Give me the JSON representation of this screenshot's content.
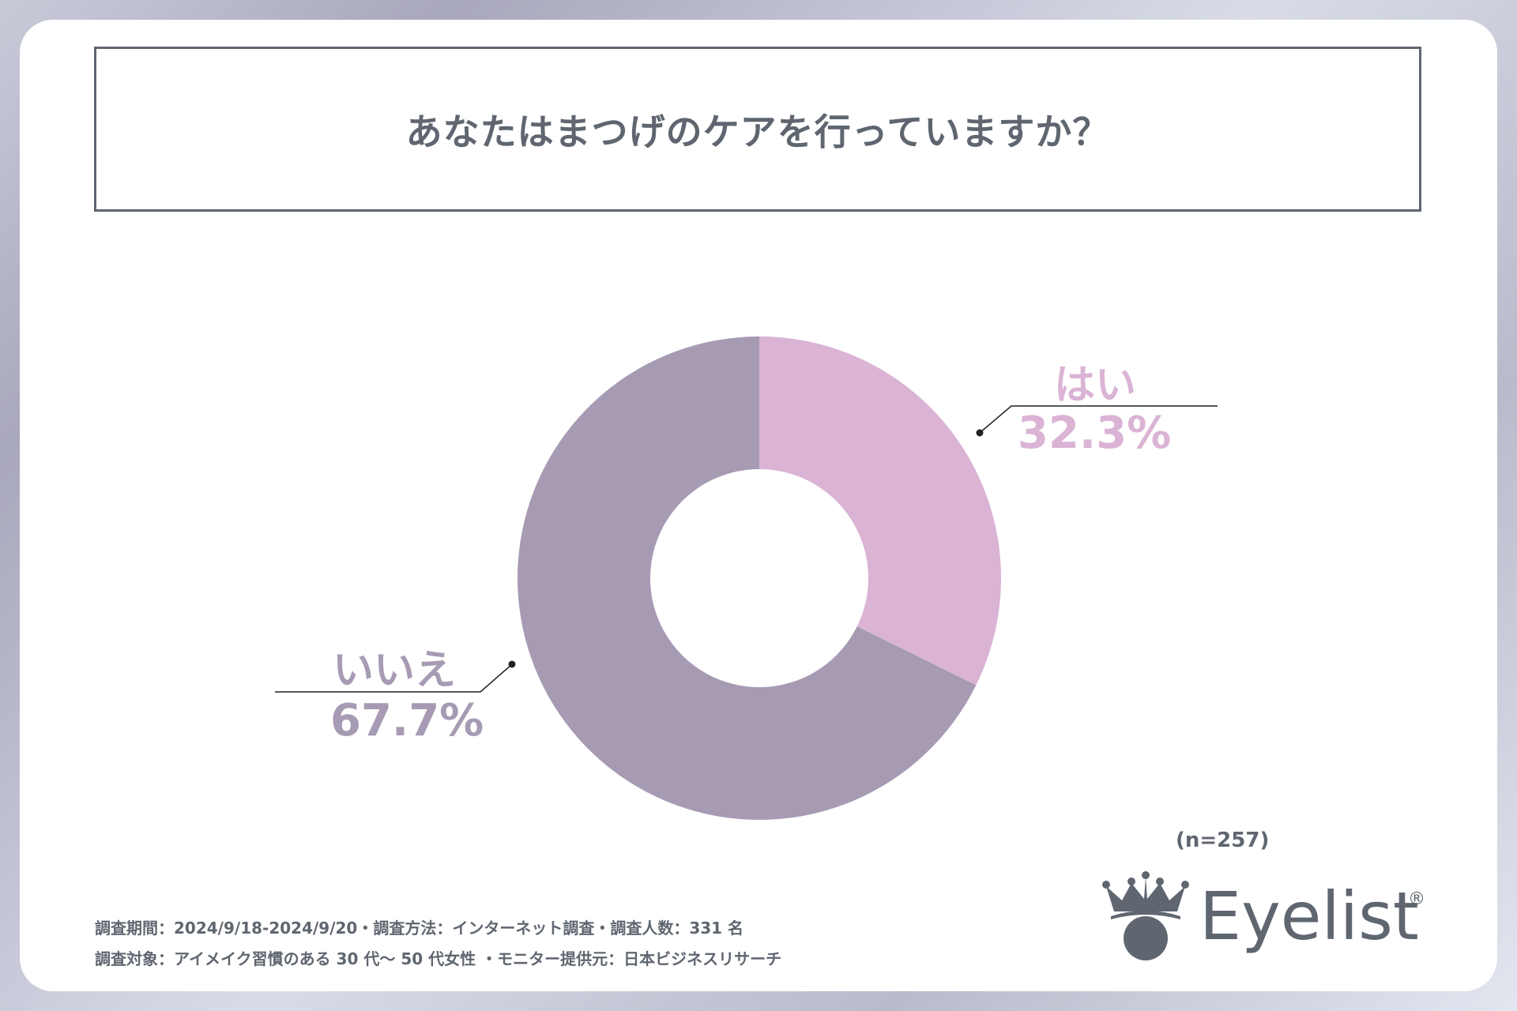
{
  "title": "あなたはまつげのケアを行っていますか？",
  "colors": {
    "yes": "#dab3d5",
    "no": "#a79bb4",
    "text": "#5f6670",
    "leader": "#222222"
  },
  "chart_data": {
    "type": "pie",
    "subtype": "donut",
    "title": "あなたはまつげのケアを行っていますか？",
    "slices": [
      {
        "label": "はい",
        "value": 32.3,
        "value_label": "32.3%"
      },
      {
        "label": "いいえ",
        "value": 67.7,
        "value_label": "67.7%"
      }
    ],
    "start": "12 o'clock",
    "direction": "clockwise"
  },
  "sample_size": "(n=257)",
  "footer": {
    "line1": "調査期間：2024/9/18-2024/9/20・調査方法：インターネット調査・調査人数：331 名",
    "line2": "調査対象：アイメイク習慣のある 30 代～ 50 代女性 ・モニター提供元：日本ビジネスリサーチ"
  },
  "logo": {
    "icon": "crown-eye-icon",
    "text": "Eyelist",
    "reg": "®"
  }
}
